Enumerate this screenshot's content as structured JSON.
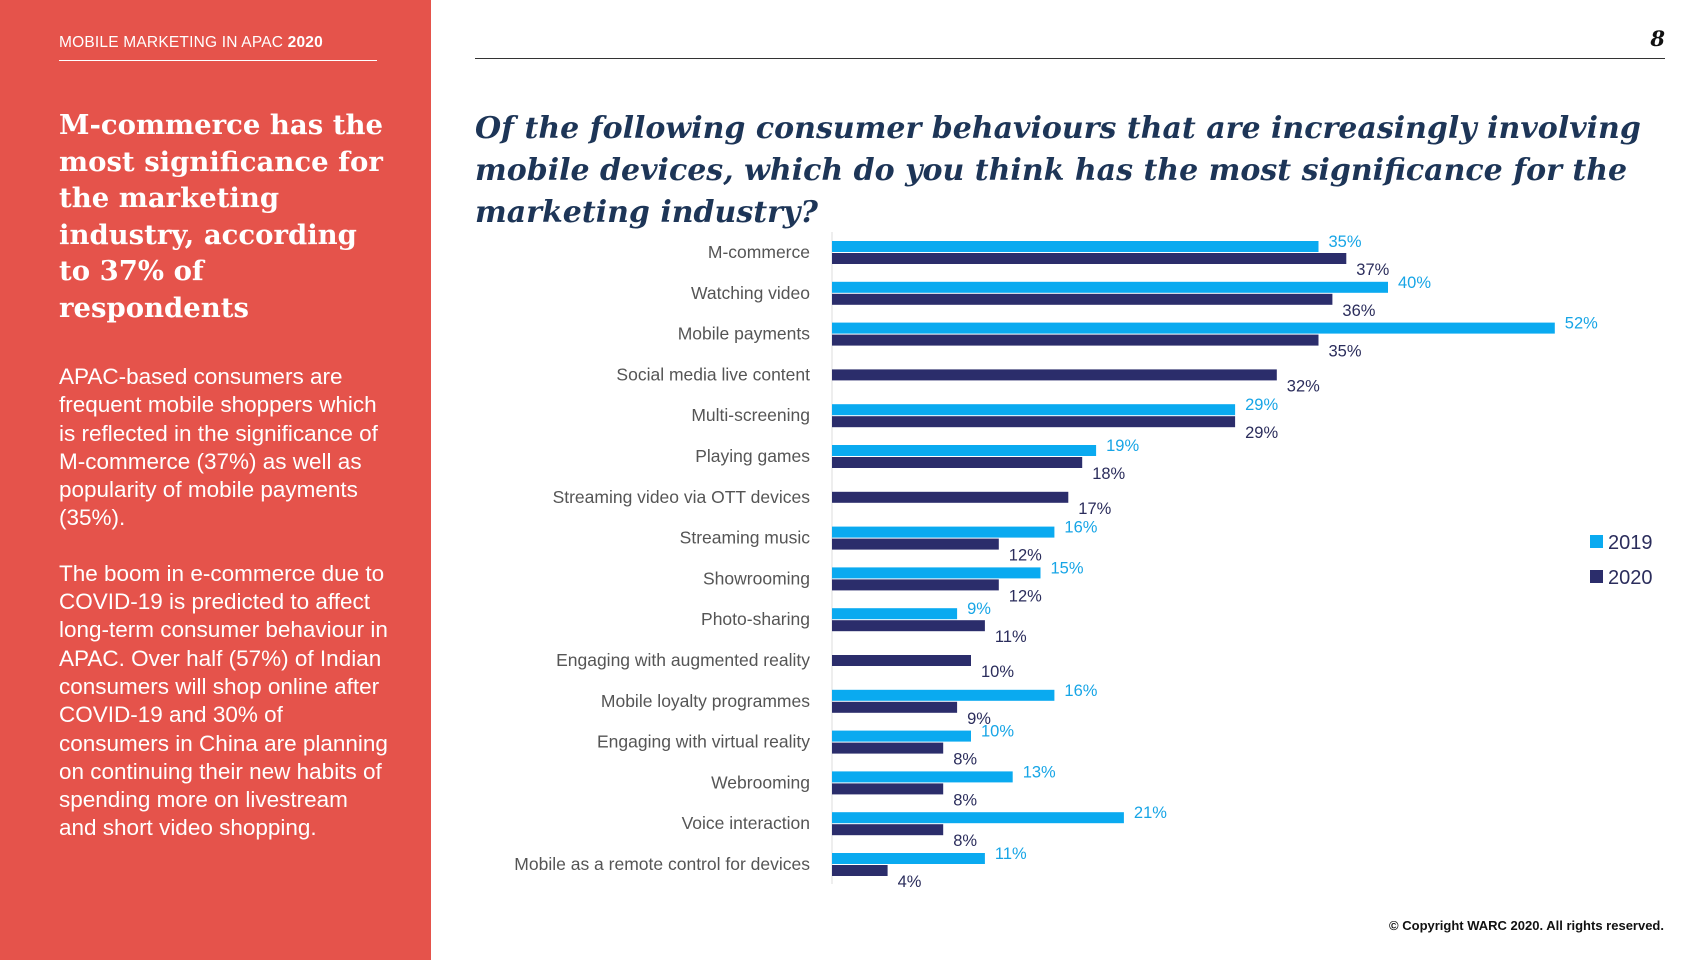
{
  "sidebar": {
    "report_label": "MOBILE MARKETING IN APAC",
    "report_year": "2020",
    "headline": "M-commerce has the most significance for the marketing industry, according to 37% of respondents",
    "paragraphs": [
      "APAC-based consumers are frequent mobile shoppers which is reflected in the significance of M-commerce (37%) as well as popularity of mobile payments (35%).",
      "The boom in e-commerce due to COVID-19 is predicted to affect long-term consumer behaviour in APAC. Over half (57%) of Indian consumers will shop online after COVID-19 and 30% of consumers in China are planning on continuing their new habits of spending more on livestream and short video shopping."
    ]
  },
  "header": {
    "page_number": "8"
  },
  "footer": {
    "copyright": "© Copyright WARC 2020. All rights reserved."
  },
  "colors": {
    "accent": "#e5534b",
    "series_2019": "#0aaaf0",
    "series_2020": "#2b2d6b",
    "title": "#1d3557"
  },
  "chart_data": {
    "type": "bar",
    "orientation": "horizontal",
    "title": "Of the following consumer behaviours that are increasingly involving mobile devices, which do you think has the most significance for the marketing industry?",
    "categories": [
      "M-commerce",
      "Watching video",
      "Mobile payments",
      "Social media live content",
      "Multi-screening",
      "Playing games",
      "Streaming video via OTT devices",
      "Streaming music",
      "Showrooming",
      "Photo-sharing",
      "Engaging with augmented reality",
      "Mobile loyalty programmes",
      "Engaging with virtual reality",
      "Webrooming",
      "Voice interaction",
      "Mobile as a remote control for devices"
    ],
    "series": [
      {
        "name": "2019",
        "values": [
          35,
          40,
          52,
          null,
          29,
          19,
          null,
          16,
          15,
          9,
          null,
          16,
          10,
          13,
          21,
          11
        ]
      },
      {
        "name": "2020",
        "values": [
          37,
          36,
          35,
          32,
          29,
          18,
          17,
          12,
          12,
          11,
          10,
          9,
          8,
          8,
          8,
          4
        ]
      }
    ],
    "value_suffix": "%",
    "xlim": [
      0,
      52
    ],
    "grid": false,
    "legend": "right"
  }
}
